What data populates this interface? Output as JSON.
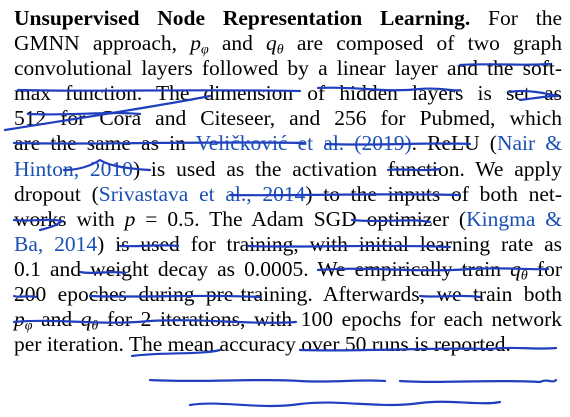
{
  "paragraph": {
    "heading": "Unsupervised Node Representation Learning.",
    "lines": [
      {
        "segments": [
          {
            "t": "Unsupervised Node Representation Learning.",
            "k": "bold"
          },
          {
            "t": " For the",
            "k": "text"
          }
        ]
      },
      {
        "segments": [
          {
            "t": "GMNN approach, ",
            "k": "text"
          },
          {
            "t": "p",
            "k": "math",
            "sub": "φ"
          },
          {
            "t": " and ",
            "k": "text"
          },
          {
            "t": "q",
            "k": "math",
            "sub": "θ"
          },
          {
            "t": " are composed of two graph",
            "k": "text"
          }
        ]
      },
      {
        "segments": [
          {
            "t": "convolutional layers followed by a linear layer and the soft-",
            "k": "text"
          }
        ]
      },
      {
        "segments": [
          {
            "t": "max function.  The dimension of hidden layers is set as",
            "k": "text"
          }
        ]
      },
      {
        "segments": [
          {
            "t": "512 for Cora and Citeseer, and 256 for Pubmed, which",
            "k": "text"
          }
        ]
      },
      {
        "segments": [
          {
            "t": "are the same as in ",
            "k": "text"
          },
          {
            "t": "Veličković et al. (2019)",
            "k": "cite"
          },
          {
            "t": ". ReLU (",
            "k": "text"
          },
          {
            "t": "Nair &",
            "k": "cite"
          }
        ]
      },
      {
        "segments": [
          {
            "t": "Hinton, 2010",
            "k": "cite"
          },
          {
            "t": ") is used as the activation function. We apply",
            "k": "text"
          }
        ]
      },
      {
        "segments": [
          {
            "t": "dropout (",
            "k": "text"
          },
          {
            "t": "Srivastava et al., 2014",
            "k": "cite"
          },
          {
            "t": ") to the inputs of both net-",
            "k": "text"
          }
        ]
      },
      {
        "segments": [
          {
            "t": "works with ",
            "k": "text"
          },
          {
            "t": "p",
            "k": "math"
          },
          {
            "t": " = 0.5. The Adam SGD optimizer (",
            "k": "text"
          },
          {
            "t": "Kingma &",
            "k": "cite"
          }
        ]
      },
      {
        "segments": [
          {
            "t": "Ba, 2014",
            "k": "cite"
          },
          {
            "t": ") is used for training, with initial learning rate as",
            "k": "text"
          }
        ]
      },
      {
        "segments": [
          {
            "t": "0.1 and weight decay as 0.0005.  We empirically train ",
            "k": "text"
          },
          {
            "t": "q",
            "k": "math",
            "sub": "θ"
          },
          {
            "t": " for",
            "k": "text"
          }
        ]
      },
      {
        "segments": [
          {
            "t": "200 epoches during pre-training.  Afterwards, we train both",
            "k": "text"
          }
        ]
      },
      {
        "segments": [
          {
            "t": "p",
            "k": "math",
            "sub": "φ"
          },
          {
            "t": " and ",
            "k": "text"
          },
          {
            "t": "q",
            "k": "math",
            "sub": "θ"
          },
          {
            "t": " for 2 iterations, with 100 epochs for each network",
            "k": "text"
          }
        ]
      },
      {
        "segments": [
          {
            "t": "per iteration. The mean accuracy over 50 runs is reported.",
            "k": "text"
          }
        ]
      }
    ]
  },
  "colors": {
    "text": "#000000",
    "citation": "#1a4fb3",
    "annotation_ink": "#1f3fbf"
  }
}
